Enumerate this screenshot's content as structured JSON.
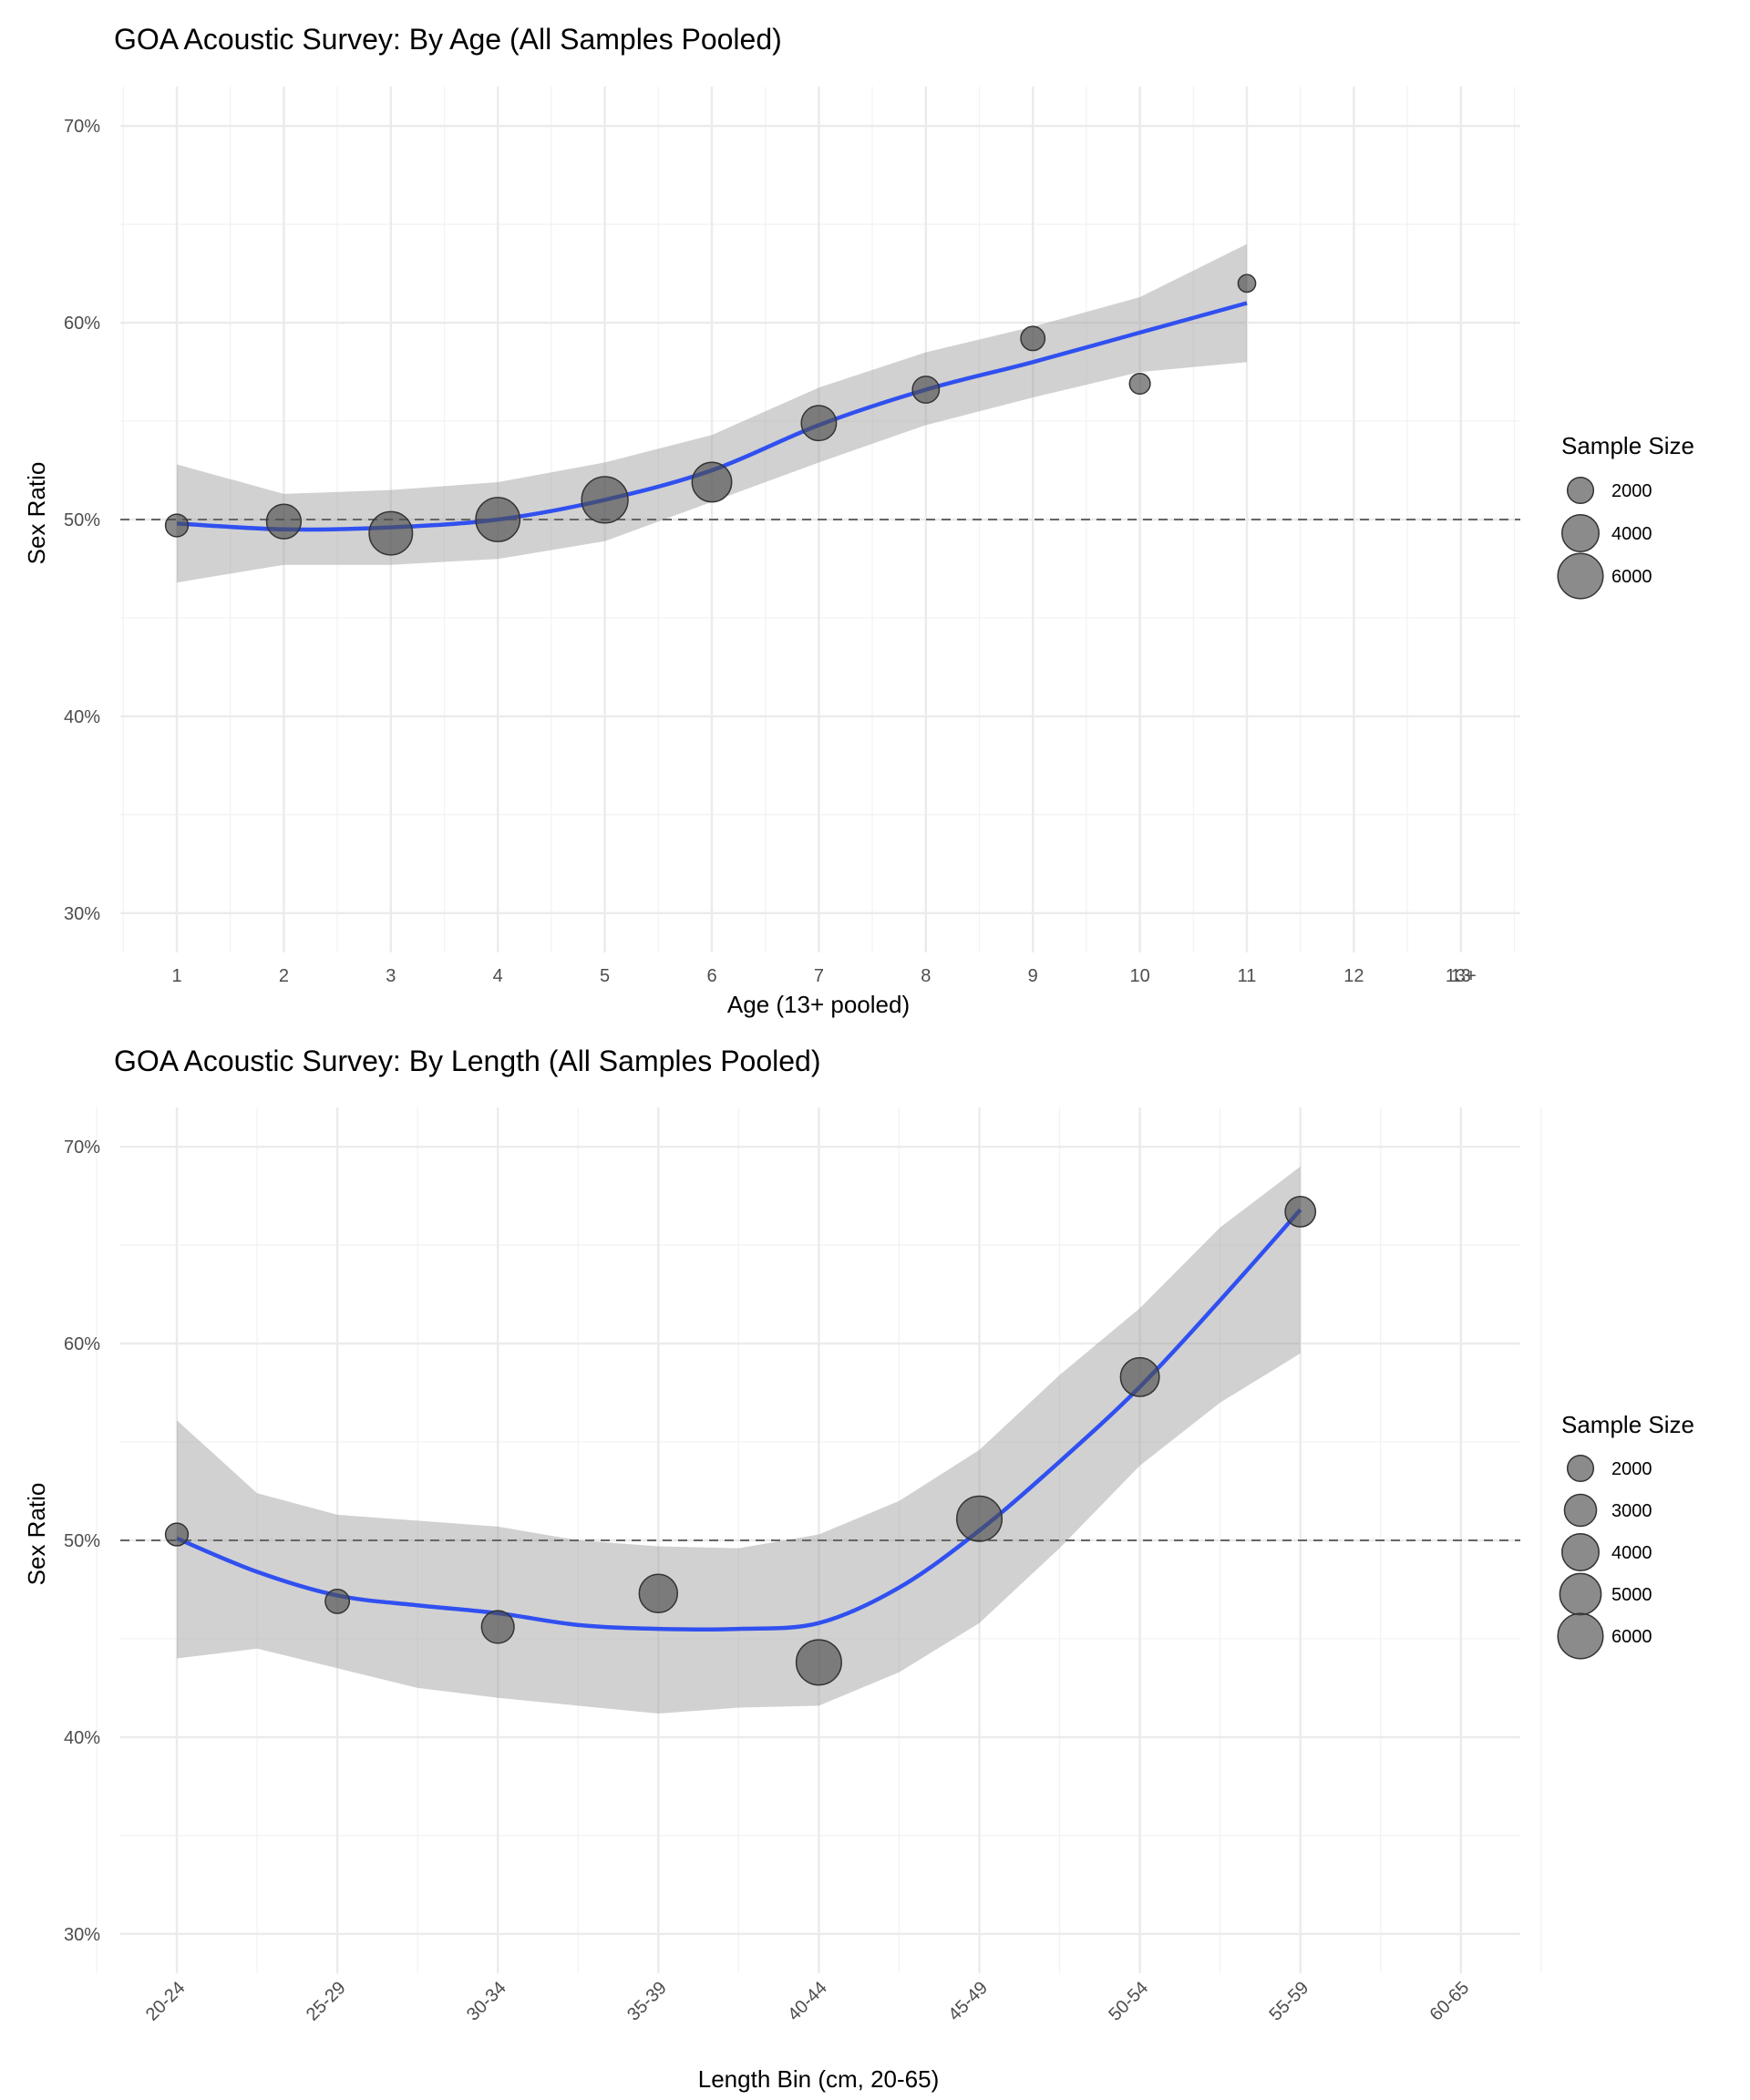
{
  "chart_data": [
    {
      "type": "scatter",
      "title": "GOA Acoustic Survey: By Age (All Samples Pooled)",
      "xlabel": "Age (13+ pooled)",
      "ylabel": "Sex Ratio",
      "x_categories": [
        "1",
        "2",
        "3",
        "4",
        "5",
        "6",
        "7",
        "8",
        "9",
        "10",
        "11",
        "12",
        "13",
        "13+"
      ],
      "ylim": [
        0.28,
        0.72
      ],
      "y_ticks": [
        0.3,
        0.4,
        0.5,
        0.6,
        0.7
      ],
      "y_tick_labels": [
        "30%",
        "40%",
        "50%",
        "60%",
        "70%"
      ],
      "reference_line": 0.5,
      "points": [
        {
          "x": 1,
          "y": 0.497,
          "n": 1500
        },
        {
          "x": 2,
          "y": 0.499,
          "n": 3500
        },
        {
          "x": 3,
          "y": 0.493,
          "n": 5500
        },
        {
          "x": 4,
          "y": 0.5,
          "n": 5700
        },
        {
          "x": 5,
          "y": 0.51,
          "n": 6300
        },
        {
          "x": 6,
          "y": 0.519,
          "n": 4600
        },
        {
          "x": 7,
          "y": 0.549,
          "n": 3600
        },
        {
          "x": 8,
          "y": 0.566,
          "n": 2100
        },
        {
          "x": 9,
          "y": 0.592,
          "n": 1700
        },
        {
          "x": 10,
          "y": 0.569,
          "n": 1250
        },
        {
          "x": 11,
          "y": 0.62,
          "n": 900
        }
      ],
      "smooth": {
        "x": [
          1,
          2,
          3,
          4,
          5,
          6,
          7,
          8,
          9,
          10,
          11
        ],
        "y": [
          0.498,
          0.495,
          0.496,
          0.5,
          0.51,
          0.525,
          0.548,
          0.566,
          0.58,
          0.595,
          0.61
        ],
        "lower": [
          0.468,
          0.477,
          0.477,
          0.48,
          0.489,
          0.509,
          0.529,
          0.548,
          0.562,
          0.575,
          0.58
        ],
        "upper": [
          0.528,
          0.513,
          0.515,
          0.519,
          0.529,
          0.543,
          0.567,
          0.585,
          0.598,
          0.613,
          0.64
        ]
      },
      "legend": {
        "title": "Sample Size",
        "position": "right",
        "entries": [
          2000,
          4000,
          6000
        ]
      }
    },
    {
      "type": "scatter",
      "title": "GOA Acoustic Survey: By Length (All Samples Pooled)",
      "xlabel": "Length Bin (cm, 20-65)",
      "ylabel": "Sex Ratio",
      "x_categories": [
        "20-24",
        "25-29",
        "30-34",
        "35-39",
        "40-44",
        "45-49",
        "50-54",
        "55-59",
        "60-65"
      ],
      "ylim": [
        0.28,
        0.72
      ],
      "y_ticks": [
        0.3,
        0.4,
        0.5,
        0.6,
        0.7
      ],
      "y_tick_labels": [
        "30%",
        "40%",
        "50%",
        "60%",
        "70%"
      ],
      "reference_line": 0.5,
      "points": [
        {
          "x": 1,
          "y": 0.503,
          "n": 1500
        },
        {
          "x": 2,
          "y": 0.469,
          "n": 1700
        },
        {
          "x": 3,
          "y": 0.456,
          "n": 3100
        },
        {
          "x": 4,
          "y": 0.473,
          "n": 4300
        },
        {
          "x": 5,
          "y": 0.438,
          "n": 6000
        },
        {
          "x": 6,
          "y": 0.511,
          "n": 6000
        },
        {
          "x": 7,
          "y": 0.583,
          "n": 4400
        },
        {
          "x": 8,
          "y": 0.667,
          "n": 2700
        }
      ],
      "smooth": {
        "x": [
          1,
          1.5,
          2,
          2.5,
          3,
          3.5,
          4,
          4.5,
          5,
          5.5,
          6,
          6.5,
          7,
          7.5,
          8
        ],
        "y": [
          0.501,
          0.484,
          0.472,
          0.467,
          0.463,
          0.457,
          0.455,
          0.455,
          0.458,
          0.476,
          0.505,
          0.54,
          0.578,
          0.622,
          0.668
        ],
        "lower": [
          0.44,
          0.445,
          0.435,
          0.425,
          0.42,
          0.416,
          0.412,
          0.415,
          0.416,
          0.433,
          0.458,
          0.496,
          0.538,
          0.57,
          0.595
        ],
        "upper": [
          0.561,
          0.524,
          0.513,
          0.51,
          0.507,
          0.5,
          0.497,
          0.496,
          0.503,
          0.52,
          0.546,
          0.584,
          0.618,
          0.659,
          0.69
        ]
      },
      "legend": {
        "title": "Sample Size",
        "position": "right",
        "entries": [
          2000,
          3000,
          4000,
          5000,
          6000
        ]
      }
    }
  ]
}
